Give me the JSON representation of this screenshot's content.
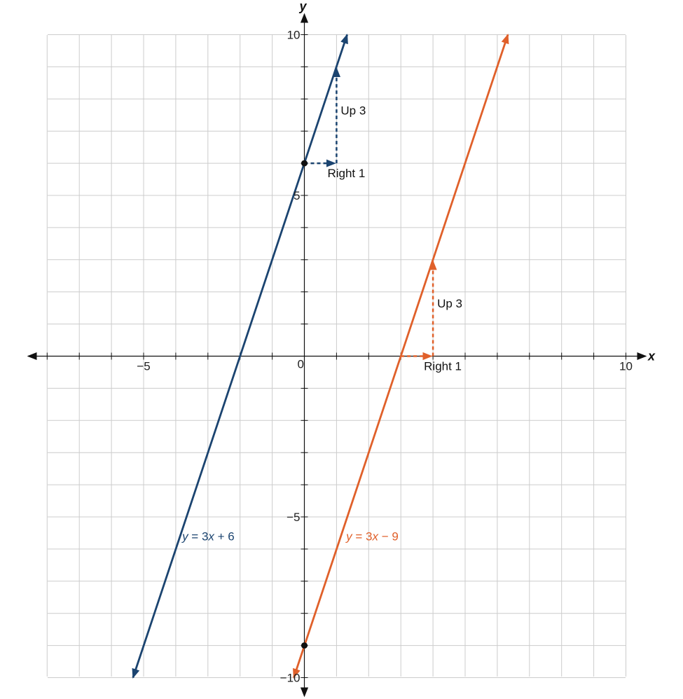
{
  "chart_data": {
    "type": "line",
    "title": "",
    "xlabel": "x",
    "ylabel": "y",
    "xlim": [
      -8,
      10
    ],
    "ylim": [
      -10,
      10
    ],
    "grid": true,
    "x_tick_labels": [
      {
        "value": -5,
        "label": "−5"
      },
      {
        "value": 10,
        "label": "10"
      }
    ],
    "y_tick_labels": [
      {
        "value": 10,
        "label": "10"
      },
      {
        "value": 5,
        "label": "5"
      },
      {
        "value": -5,
        "label": "−5"
      },
      {
        "value": -10,
        "label": "−10"
      }
    ],
    "origin_label": "0",
    "series": [
      {
        "key": "blue",
        "equation": {
          "y": "y",
          "x": "x",
          "rest": " = 3",
          "suffix": " + 6"
        },
        "slope": 3,
        "intercept": 6,
        "x": [
          -5.33,
          1.33
        ],
        "y": [
          -10,
          10
        ],
        "color": "#1b4470",
        "points": [
          {
            "x": 0,
            "y": 6
          }
        ],
        "slope_triangle": {
          "from": [
            0,
            6
          ],
          "right": 1,
          "up": 3,
          "right_label": "Right 1",
          "up_label": "Up 3"
        },
        "label_at": [
          -3.8,
          -5.6
        ]
      },
      {
        "key": "orange",
        "equation": {
          "y": "y",
          "x": "x",
          "rest": " = 3",
          "suffix": " − 9"
        },
        "slope": 3,
        "intercept": -9,
        "x": [
          -0.33,
          6.33
        ],
        "y": [
          -10,
          10
        ],
        "color": "#e0602a",
        "points": [
          {
            "x": 0,
            "y": -9
          }
        ],
        "slope_triangle": {
          "from": [
            3,
            0
          ],
          "right": 1,
          "up": 3,
          "right_label": "Right 1",
          "up_label": "Up 3"
        },
        "label_at": [
          1.3,
          -5.6
        ]
      }
    ]
  }
}
